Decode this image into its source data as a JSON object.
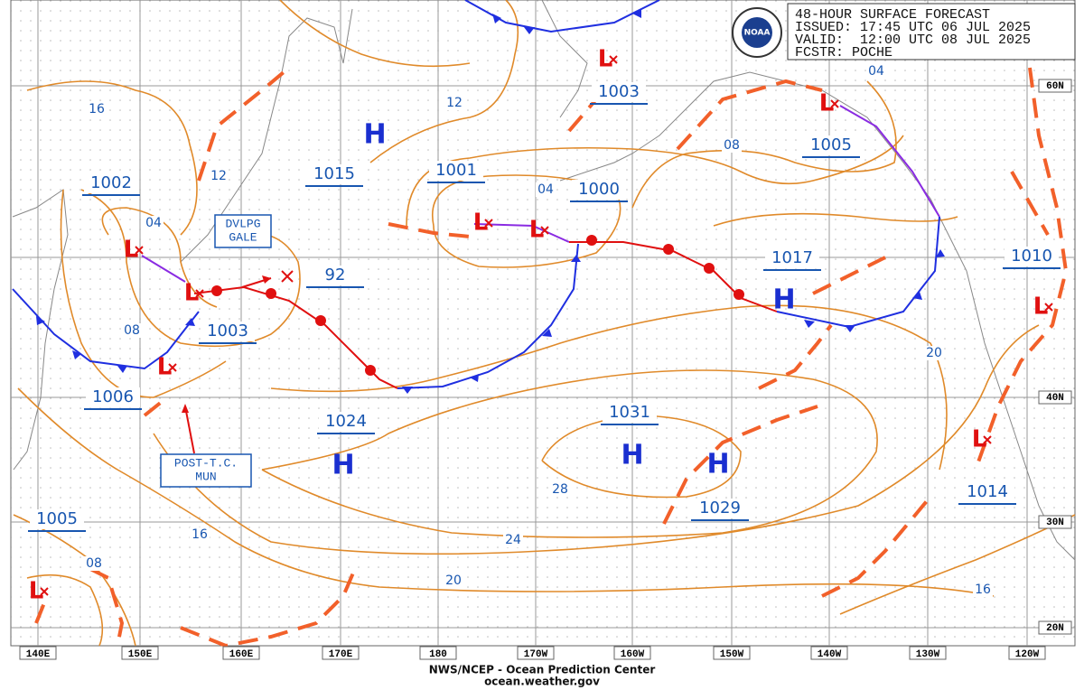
{
  "header": {
    "title": "48-HOUR SURFACE FORECAST",
    "issued": "ISSUED: 17:45 UTC 06 JUL 2025",
    "valid": "VALID:  12:00 UTC 08 JUL 2025",
    "forecaster": "FCSTR: POCHE"
  },
  "logo": "NOAA",
  "footer": {
    "agency": "NWS/NCEP - Ocean Prediction Center",
    "url": "ocean.weather.gov"
  },
  "longitudes": [
    "140E",
    "150E",
    "160E",
    "170E",
    "180",
    "170W",
    "160W",
    "150W",
    "140W",
    "130W",
    "120W"
  ],
  "latitudes": [
    "60N",
    "40N",
    "30N",
    "20N"
  ],
  "pressure_labels": [
    "1002",
    "1003",
    "1006",
    "1005",
    "1015",
    "1001",
    "1000",
    "1003",
    "1005",
    "1017",
    "1010",
    "1024",
    "1031",
    "1029",
    "1014",
    "92"
  ],
  "isobar_labels": [
    "16",
    "12",
    "04",
    "08",
    "12",
    "04",
    "08",
    "04",
    "20",
    "28",
    "24",
    "20",
    "16",
    "08",
    "16"
  ],
  "annotations": [
    [
      "DVLPG",
      "GALE"
    ],
    [
      "POST-T.C.",
      "MUN"
    ]
  ],
  "highs": [
    "H",
    "H",
    "H",
    "H",
    "H"
  ],
  "lows": [
    "L",
    "L",
    "L",
    "L",
    "L",
    "L",
    "L",
    "L",
    "L",
    "L"
  ]
}
